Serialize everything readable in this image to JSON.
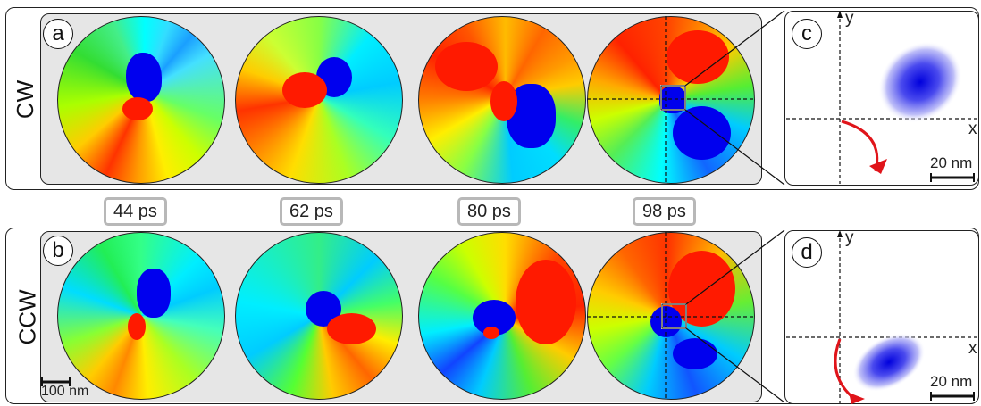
{
  "rows": [
    {
      "id": "a",
      "label": "CW"
    },
    {
      "id": "b",
      "label": "CCW"
    }
  ],
  "insets": [
    {
      "id": "c",
      "x_axis": "x",
      "y_axis": "y",
      "scalebar": "20 nm"
    },
    {
      "id": "d",
      "x_axis": "x",
      "y_axis": "y",
      "scalebar": "20 nm"
    }
  ],
  "times": [
    "44 ps",
    "62 ps",
    "80 ps",
    "98 ps"
  ],
  "main_scalebar": "100 nm",
  "colors": {
    "red": "#ff1a00",
    "yellow": "#ffff00",
    "green": "#22cc22",
    "cyan": "#00ffff",
    "blue": "#0000ff",
    "arrow": "#e0141a"
  }
}
